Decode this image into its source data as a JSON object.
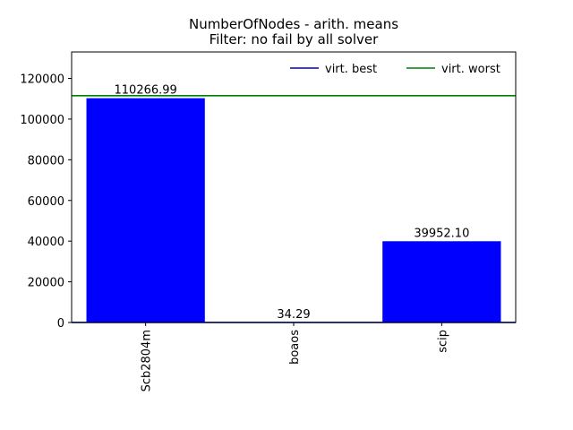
{
  "chart_data": {
    "type": "bar",
    "title": "NumberOfNodes - arith. means",
    "subtitle": "Filter: no fail by all solver",
    "xlabel": "",
    "ylabel": "",
    "categories": [
      "Scb2804m",
      "boaos",
      "scip"
    ],
    "values": [
      110266.99,
      34.29,
      39952.1
    ],
    "value_labels": [
      "110266.99",
      "34.29",
      "39952.10"
    ],
    "ylim": [
      0,
      133000
    ],
    "yticks": [
      0,
      20000,
      40000,
      60000,
      80000,
      100000,
      120000
    ],
    "bar_color": "#0000ff",
    "grid": false,
    "legend_position": "top-right",
    "reference_lines": [
      {
        "name": "virt. best",
        "value": 34.29,
        "color": "#0000bf"
      },
      {
        "name": "virt. worst",
        "value": 111500,
        "color": "#008000"
      }
    ]
  }
}
